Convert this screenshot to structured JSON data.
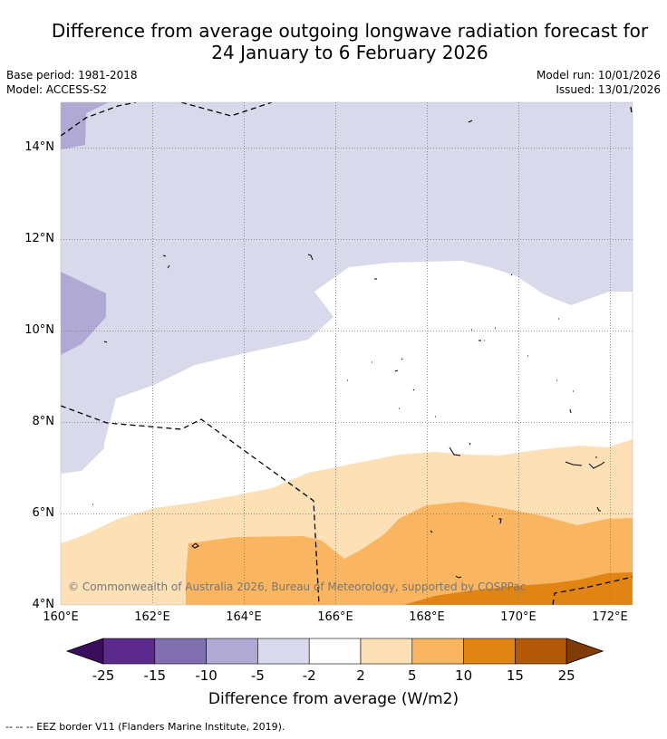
{
  "title_line1": "Difference from average outgoing longwave radiation forecast for",
  "title_line2": "24 January to 6 February 2026",
  "meta": {
    "base_period": "Base period: 1981-2018",
    "model": "Model: ACCESS-S2",
    "model_run": "Model run: 10/01/2026",
    "issued": "Issued: 13/01/2026"
  },
  "axes": {
    "lat_labels": [
      "14°N",
      "12°N",
      "10°N",
      "8°N",
      "6°N",
      "4°N"
    ],
    "lon_labels": [
      "160°E",
      "162°E",
      "164°E",
      "166°E",
      "168°E",
      "170°E",
      "172°E"
    ]
  },
  "copyright": "© Commonwealth of Australia 2026, Bureau of Meteorology, supported by COSPPac",
  "colorbar": {
    "title": "Difference from average (W/m2)",
    "ticks": [
      "-25",
      "-15",
      "-10",
      "-5",
      "-2",
      "2",
      "5",
      "10",
      "15",
      "25"
    ],
    "colors": [
      "#3b0f5e",
      "#5c2a8c",
      "#8070b0",
      "#b0a9d3",
      "#d9d9ec",
      "#ffffff",
      "#fde0b6",
      "#f9b560",
      "#e08414",
      "#b35806",
      "#7f3b08"
    ]
  },
  "footnote": "--  --  -- EEZ border V11 (Flanders Marine Institute, 2019)."
}
